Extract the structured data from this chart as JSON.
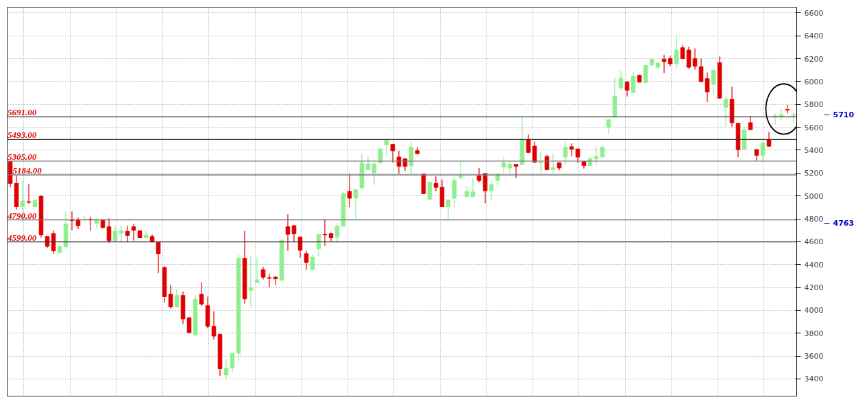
{
  "chart_data": {
    "type": "candlestick",
    "categories": [
      null,
      null,
      null,
      null,
      null,
      null,
      null,
      null,
      null,
      null,
      null,
      null,
      null,
      null,
      null,
      null,
      null,
      null,
      null,
      null,
      null,
      null,
      null,
      null,
      null,
      null,
      null,
      null,
      null,
      null,
      null,
      null,
      null,
      null,
      null,
      null,
      null,
      null,
      null,
      null,
      null,
      null,
      null,
      null,
      null,
      null,
      null,
      null,
      null,
      null,
      null,
      null,
      null,
      null,
      null,
      null,
      null,
      null,
      null,
      null,
      null,
      null,
      null,
      null,
      null,
      null,
      null,
      null,
      null,
      null,
      null,
      null,
      null,
      null,
      null,
      null,
      null,
      null,
      null,
      null,
      null,
      null,
      null,
      null,
      null,
      null,
      null,
      null,
      null,
      null,
      null,
      null,
      null,
      null,
      null,
      null,
      null,
      null,
      null,
      null,
      null,
      null,
      null,
      null,
      null,
      null,
      null,
      null,
      null,
      null,
      null,
      null,
      null,
      null,
      null,
      null,
      null,
      null,
      null,
      null,
      null,
      null,
      null,
      null,
      null,
      null,
      null,
      null
    ],
    "ohlc": [
      [
        5300,
        5305,
        5075,
        5110
      ],
      [
        5110,
        5180,
        4880,
        4905
      ],
      [
        4905,
        5140,
        4770,
        4955
      ],
      [
        4950,
        5105,
        4930,
        4945
      ],
      [
        4905,
        4970,
        4900,
        4960
      ],
      [
        4995,
        5010,
        4635,
        4660
      ],
      [
        4645,
        4650,
        4545,
        4560
      ],
      [
        4670,
        4700,
        4495,
        4520
      ],
      [
        4505,
        4575,
        4505,
        4555
      ],
      [
        4555,
        4865,
        4550,
        4755
      ],
      [
        4790,
        4865,
        4700,
        4785
      ],
      [
        4790,
        4810,
        4710,
        4740
      ],
      [
        4790,
        4825,
        4785,
        4795
      ],
      [
        4795,
        4820,
        4695,
        4790
      ],
      [
        4760,
        4805,
        4720,
        4790
      ],
      [
        4790,
        4795,
        4715,
        4725
      ],
      [
        4730,
        4805,
        4590,
        4610
      ],
      [
        4610,
        4740,
        4600,
        4690
      ],
      [
        4675,
        4745,
        4590,
        4695
      ],
      [
        4690,
        4740,
        4595,
        4655
      ],
      [
        4730,
        4755,
        4610,
        4700
      ],
      [
        4695,
        4700,
        4630,
        4635
      ],
      [
        4635,
        4695,
        4630,
        4660
      ],
      [
        4645,
        4665,
        4595,
        4605
      ],
      [
        4595,
        4600,
        4325,
        4495
      ],
      [
        4375,
        4385,
        4065,
        4120
      ],
      [
        4140,
        4225,
        4015,
        4030
      ],
      [
        4030,
        4180,
        4025,
        4130
      ],
      [
        4130,
        4165,
        3880,
        3925
      ],
      [
        3935,
        3940,
        3800,
        3805
      ],
      [
        3785,
        4135,
        3770,
        4095
      ],
      [
        4140,
        4245,
        4035,
        4055
      ],
      [
        4040,
        4120,
        3845,
        3860
      ],
      [
        3860,
        3990,
        3745,
        3775
      ],
      [
        3790,
        3795,
        3425,
        3490
      ],
      [
        3435,
        3575,
        3400,
        3495
      ],
      [
        3495,
        3625,
        3455,
        3625
      ],
      [
        3625,
        4495,
        3555,
        4455
      ],
      [
        4455,
        4695,
        4060,
        4100
      ],
      [
        4175,
        4470,
        4030,
        4195
      ],
      [
        4245,
        4465,
        4240,
        4265
      ],
      [
        4355,
        4380,
        4270,
        4290
      ],
      [
        4285,
        4320,
        4200,
        4280
      ],
      [
        4290,
        4300,
        4220,
        4275
      ],
      [
        4265,
        4620,
        4240,
        4610
      ],
      [
        4730,
        4840,
        4520,
        4665
      ],
      [
        4740,
        4745,
        4595,
        4670
      ],
      [
        4640,
        4645,
        4460,
        4525
      ],
      [
        4495,
        4520,
        4355,
        4420
      ],
      [
        4355,
        4490,
        4350,
        4465
      ],
      [
        4540,
        4665,
        4470,
        4665
      ],
      [
        4665,
        4795,
        4565,
        4660
      ],
      [
        4670,
        4680,
        4605,
        4635
      ],
      [
        4640,
        4760,
        4590,
        4735
      ],
      [
        4735,
        5040,
        4730,
        5020
      ],
      [
        5040,
        5195,
        4900,
        4980
      ],
      [
        4980,
        5060,
        4790,
        5055
      ],
      [
        5070,
        5370,
        5065,
        5290
      ],
      [
        5230,
        5345,
        5225,
        5280
      ],
      [
        5200,
        5285,
        5095,
        5280
      ],
      [
        5290,
        5430,
        5280,
        5410
      ],
      [
        5445,
        5495,
        5345,
        5490
      ],
      [
        5450,
        5455,
        5290,
        5395
      ],
      [
        5340,
        5395,
        5195,
        5260
      ],
      [
        5325,
        5330,
        5220,
        5260
      ],
      [
        5265,
        5470,
        5190,
        5425
      ],
      [
        5395,
        5425,
        5365,
        5370
      ],
      [
        5190,
        5195,
        5015,
        5020
      ],
      [
        4970,
        5120,
        4965,
        5120
      ],
      [
        5110,
        5170,
        5040,
        5075
      ],
      [
        5075,
        5145,
        4905,
        4905
      ],
      [
        4905,
        4965,
        4790,
        4965
      ],
      [
        4980,
        5170,
        4900,
        5135
      ],
      [
        5160,
        5300,
        5145,
        5175
      ],
      [
        4995,
        5090,
        4990,
        5040
      ],
      [
        4995,
        5155,
        4990,
        5035
      ],
      [
        5175,
        5245,
        5120,
        5135
      ],
      [
        5195,
        5200,
        4935,
        5045
      ],
      [
        5045,
        5135,
        4960,
        5100
      ],
      [
        5135,
        5190,
        5080,
        5190
      ],
      [
        5255,
        5340,
        5195,
        5290
      ],
      [
        5245,
        5310,
        5200,
        5275
      ],
      [
        5275,
        5280,
        5155,
        5260
      ],
      [
        5275,
        5695,
        5270,
        5495
      ],
      [
        5495,
        5540,
        5375,
        5380
      ],
      [
        5435,
        5475,
        5290,
        5295
      ],
      [
        5290,
        5390,
        5200,
        5295
      ],
      [
        5345,
        5360,
        5225,
        5230
      ],
      [
        5230,
        5370,
        5195,
        5245
      ],
      [
        5290,
        5295,
        5225,
        5245
      ],
      [
        5340,
        5475,
        5275,
        5425
      ],
      [
        5430,
        5460,
        5345,
        5410
      ],
      [
        5410,
        5415,
        5290,
        5340
      ],
      [
        5300,
        5305,
        5240,
        5265
      ],
      [
        5265,
        5340,
        5260,
        5325
      ],
      [
        5325,
        5430,
        5270,
        5345
      ],
      [
        5340,
        5445,
        5335,
        5425
      ],
      [
        5600,
        5675,
        5540,
        5665
      ],
      [
        5695,
        6035,
        5690,
        5870
      ],
      [
        5945,
        6095,
        5930,
        6030
      ],
      [
        5995,
        6005,
        5870,
        5925
      ],
      [
        5905,
        6090,
        5900,
        6045
      ],
      [
        6055,
        6060,
        5990,
        5995
      ],
      [
        5990,
        6145,
        5985,
        6140
      ],
      [
        6145,
        6200,
        6130,
        6195
      ],
      [
        6125,
        6170,
        6115,
        6160
      ],
      [
        6195,
        6235,
        6075,
        6175
      ],
      [
        6200,
        6225,
        6135,
        6155
      ],
      [
        6155,
        6400,
        6110,
        6275
      ],
      [
        6295,
        6320,
        6195,
        6200
      ],
      [
        6275,
        6305,
        6110,
        6125
      ],
      [
        6200,
        6290,
        6105,
        6135
      ],
      [
        6130,
        6200,
        5995,
        6000
      ],
      [
        6025,
        6080,
        5820,
        5910
      ],
      [
        5975,
        6100,
        5890,
        6100
      ],
      [
        6165,
        6220,
        5850,
        5855
      ],
      [
        5775,
        5870,
        5600,
        5845
      ],
      [
        5845,
        5955,
        5605,
        5640
      ],
      [
        5635,
        5640,
        5340,
        5405
      ],
      [
        5410,
        5600,
        5405,
        5575
      ],
      [
        5640,
        5700,
        5575,
        5580
      ],
      [
        5405,
        5410,
        5310,
        5355
      ],
      [
        5355,
        5480,
        5295,
        5460
      ],
      [
        5490,
        5560,
        5430,
        5435
      ],
      [
        5690,
        5720,
        5625,
        5700
      ],
      [
        5695,
        5760,
        5665,
        5710
      ],
      [
        5755,
        5795,
        5720,
        5750
      ],
      [
        5705,
        5735,
        5650,
        5710
      ]
    ],
    "colors": [
      "#e00000",
      "#e00000",
      "#90ee90",
      "#e00000",
      "#90ee90",
      "#e00000",
      "#e00000",
      "#e00000",
      "#90ee90",
      "#90ee90",
      "#e00000",
      "#e00000",
      "#90ee90",
      "#e00000",
      "#90ee90",
      "#e00000",
      "#e00000",
      "#90ee90",
      "#90ee90",
      "#e00000",
      "#e00000",
      "#e00000",
      "#90ee90",
      "#e00000",
      "#e00000",
      "#e00000",
      "#e00000",
      "#90ee90",
      "#e00000",
      "#e00000",
      "#90ee90",
      "#e00000",
      "#e00000",
      "#e00000",
      "#e00000",
      "#90ee90",
      "#90ee90",
      "#90ee90",
      "#e00000",
      "#90ee90",
      "#90ee90",
      "#e00000",
      "#e00000",
      "#e00000",
      "#90ee90",
      "#e00000",
      "#e00000",
      "#e00000",
      "#e00000",
      "#90ee90",
      "#90ee90",
      "#e00000",
      "#e00000",
      "#90ee90",
      "#90ee90",
      "#e00000",
      "#90ee90",
      "#90ee90",
      "#90ee90",
      "#90ee90",
      "#90ee90",
      "#90ee90",
      "#e00000",
      "#e00000",
      "#e00000",
      "#90ee90",
      "#e00000",
      "#e00000",
      "#90ee90",
      "#e00000",
      "#e00000",
      "#90ee90",
      "#90ee90",
      "#90ee90",
      "#90ee90",
      "#90ee90",
      "#e00000",
      "#e00000",
      "#90ee90",
      "#90ee90",
      "#90ee90",
      "#90ee90",
      "#e00000",
      "#90ee90",
      "#e00000",
      "#e00000",
      "#90ee90",
      "#e00000",
      "#90ee90",
      "#e00000",
      "#90ee90",
      "#e00000",
      "#e00000",
      "#e00000",
      "#90ee90",
      "#90ee90",
      "#90ee90",
      "#90ee90",
      "#90ee90",
      "#90ee90",
      "#e00000",
      "#90ee90",
      "#e00000",
      "#90ee90",
      "#90ee90",
      "#90ee90",
      "#e00000",
      "#e00000",
      "#90ee90",
      "#e00000",
      "#e00000",
      "#e00000",
      "#e00000",
      "#e00000",
      "#90ee90",
      "#e00000",
      "#90ee90",
      "#e00000",
      "#e00000",
      "#90ee90",
      "#e00000",
      "#e00000",
      "#90ee90",
      "#e00000",
      "#90ee90",
      "#90ee90",
      "#e00000",
      "#90ee90"
    ],
    "ylim": [
      3250,
      6650
    ],
    "yticks": [
      3400,
      3600,
      3800,
      4000,
      4200,
      4400,
      4600,
      4800,
      5000,
      5200,
      5400,
      5600,
      5800,
      6000,
      6200,
      6400,
      6600
    ],
    "tick_labels": "y",
    "grid": true,
    "ref_lines": [
      {
        "axis": "y",
        "value": 5691,
        "label": "5691.00",
        "color": "#333333"
      },
      {
        "axis": "y",
        "value": 5493,
        "label": "5493.00",
        "color": "#333333"
      },
      {
        "axis": "y",
        "value": 5305,
        "label": "5305.00",
        "color": "#777777"
      },
      {
        "axis": "y",
        "value": 5184,
        "label": "5184.00",
        "color": "#777777"
      },
      {
        "axis": "y",
        "value": 4790,
        "label": "4790.00",
        "color": "#777777"
      },
      {
        "axis": "y",
        "value": 4599,
        "label": "4599.00",
        "color": "#333333"
      }
    ],
    "annotations": [
      "5710",
      "4763"
    ]
  }
}
